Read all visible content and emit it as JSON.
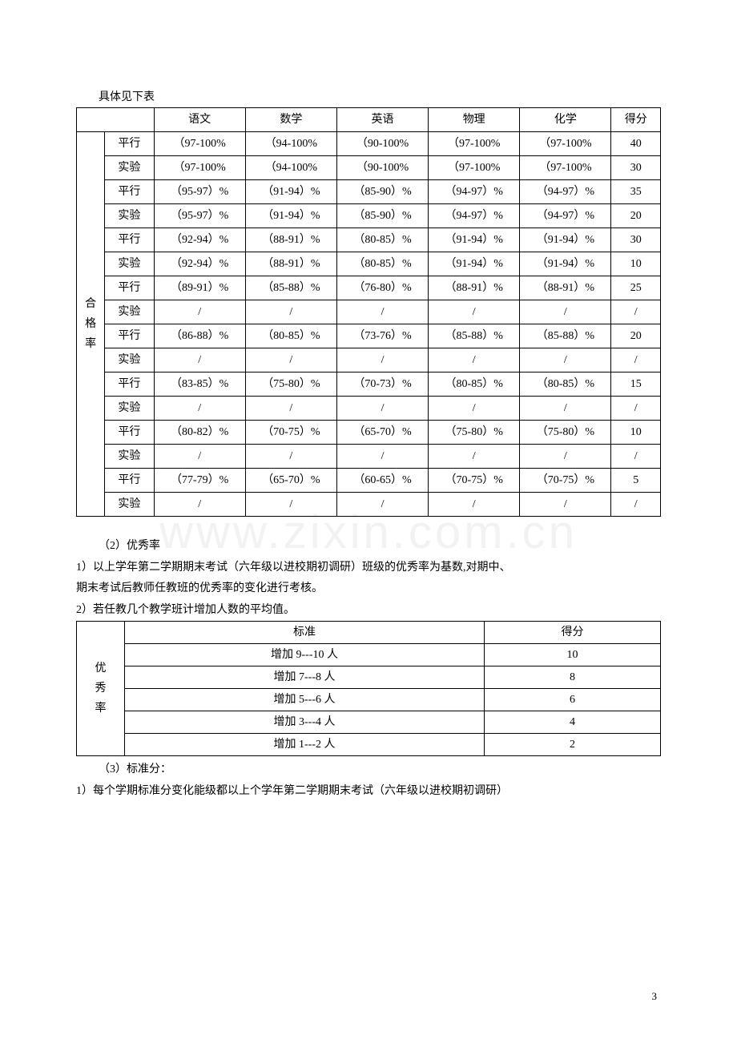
{
  "intro": "具体见下表",
  "table1": {
    "row_header_label": "合格率",
    "headers": [
      "语文",
      "数学",
      "英语",
      "物理",
      "化学",
      "得分"
    ],
    "type_labels": {
      "parallel": "平行",
      "experiment": "实验"
    },
    "rows": [
      {
        "type": "parallel",
        "cells": [
          "（97-100%",
          "（94-100%",
          "（90-100%",
          "（97-100%",
          "（97-100%",
          "40"
        ]
      },
      {
        "type": "experiment",
        "cells": [
          "（97-100%",
          "（94-100%",
          "（90-100%",
          "（97-100%",
          "（97-100%",
          "30"
        ]
      },
      {
        "type": "parallel",
        "cells": [
          "（95-97）%",
          "（91-94）%",
          "（85-90）%",
          "（94-97）%",
          "（94-97）%",
          "35"
        ]
      },
      {
        "type": "experiment",
        "cells": [
          "（95-97）%",
          "（91-94）%",
          "（85-90）%",
          "（94-97）%",
          "（94-97）%",
          "20"
        ]
      },
      {
        "type": "parallel",
        "cells": [
          "（92-94）%",
          "（88-91）%",
          "（80-85）%",
          "（91-94）%",
          "（91-94）%",
          "30"
        ]
      },
      {
        "type": "experiment",
        "cells": [
          "（92-94）%",
          "（88-91）%",
          "（80-85）%",
          "（91-94）%",
          "（91-94）%",
          "10"
        ]
      },
      {
        "type": "parallel",
        "cells": [
          "（89-91）%",
          "（85-88）%",
          "（76-80）%",
          "（88-91）%",
          "（88-91）%",
          "25"
        ]
      },
      {
        "type": "experiment",
        "cells": [
          "/",
          "/",
          "/",
          "/",
          "/",
          "/"
        ]
      },
      {
        "type": "parallel",
        "cells": [
          "（86-88）%",
          "（80-85）%",
          "（73-76）%",
          "（85-88）%",
          "（85-88）%",
          "20"
        ]
      },
      {
        "type": "experiment",
        "cells": [
          "/",
          "/",
          "/",
          "/",
          "/",
          "/"
        ]
      },
      {
        "type": "parallel",
        "cells": [
          "（83-85）%",
          "（75-80）%",
          "（70-73）%",
          "（80-85）%",
          "（80-85）%",
          "15"
        ]
      },
      {
        "type": "experiment",
        "cells": [
          "/",
          "/",
          "/",
          "/",
          "/",
          "/"
        ]
      },
      {
        "type": "parallel",
        "cells": [
          "（80-82）%",
          "（70-75）%",
          "（65-70）%",
          "（75-80）%",
          "（75-80）%",
          "10"
        ]
      },
      {
        "type": "experiment",
        "cells": [
          "/",
          "/",
          "/",
          "/",
          "/",
          "/"
        ]
      },
      {
        "type": "parallel",
        "cells": [
          "（77-79）%",
          "（65-70）%",
          "（60-65）%",
          "（70-75）%",
          "（70-75）%",
          "5"
        ]
      },
      {
        "type": "experiment",
        "cells": [
          "/",
          "/",
          "/",
          "/",
          "/",
          "/"
        ]
      }
    ]
  },
  "section2": {
    "heading": "（2）优秀率",
    "line1": "1）以上学年第二学期期末考试（六年级以进校期初调研）班级的优秀率为基数,对期中、",
    "line2": "期末考试后教师任教班的优秀率的变化进行考核。",
    "line3": "2）若任教几个教学班计增加人数的平均值。"
  },
  "table2": {
    "row_header_label": "优秀率",
    "headers": [
      "标准",
      "得分"
    ],
    "rows": [
      [
        "增加 9---10 人",
        "10"
      ],
      [
        "增加 7---8 人",
        "8"
      ],
      [
        "增加 5---6 人",
        "6"
      ],
      [
        "增加 3---4 人",
        "4"
      ],
      [
        "增加 1---2 人",
        "2"
      ]
    ]
  },
  "section3": {
    "heading": "（3）标准分：",
    "line1": "1）每个学期标准分变化能级都以上个学年第二学期期末考试（六年级以进校期初调研）"
  },
  "watermark": "www.zixin.com.cn",
  "page_number": "3"
}
